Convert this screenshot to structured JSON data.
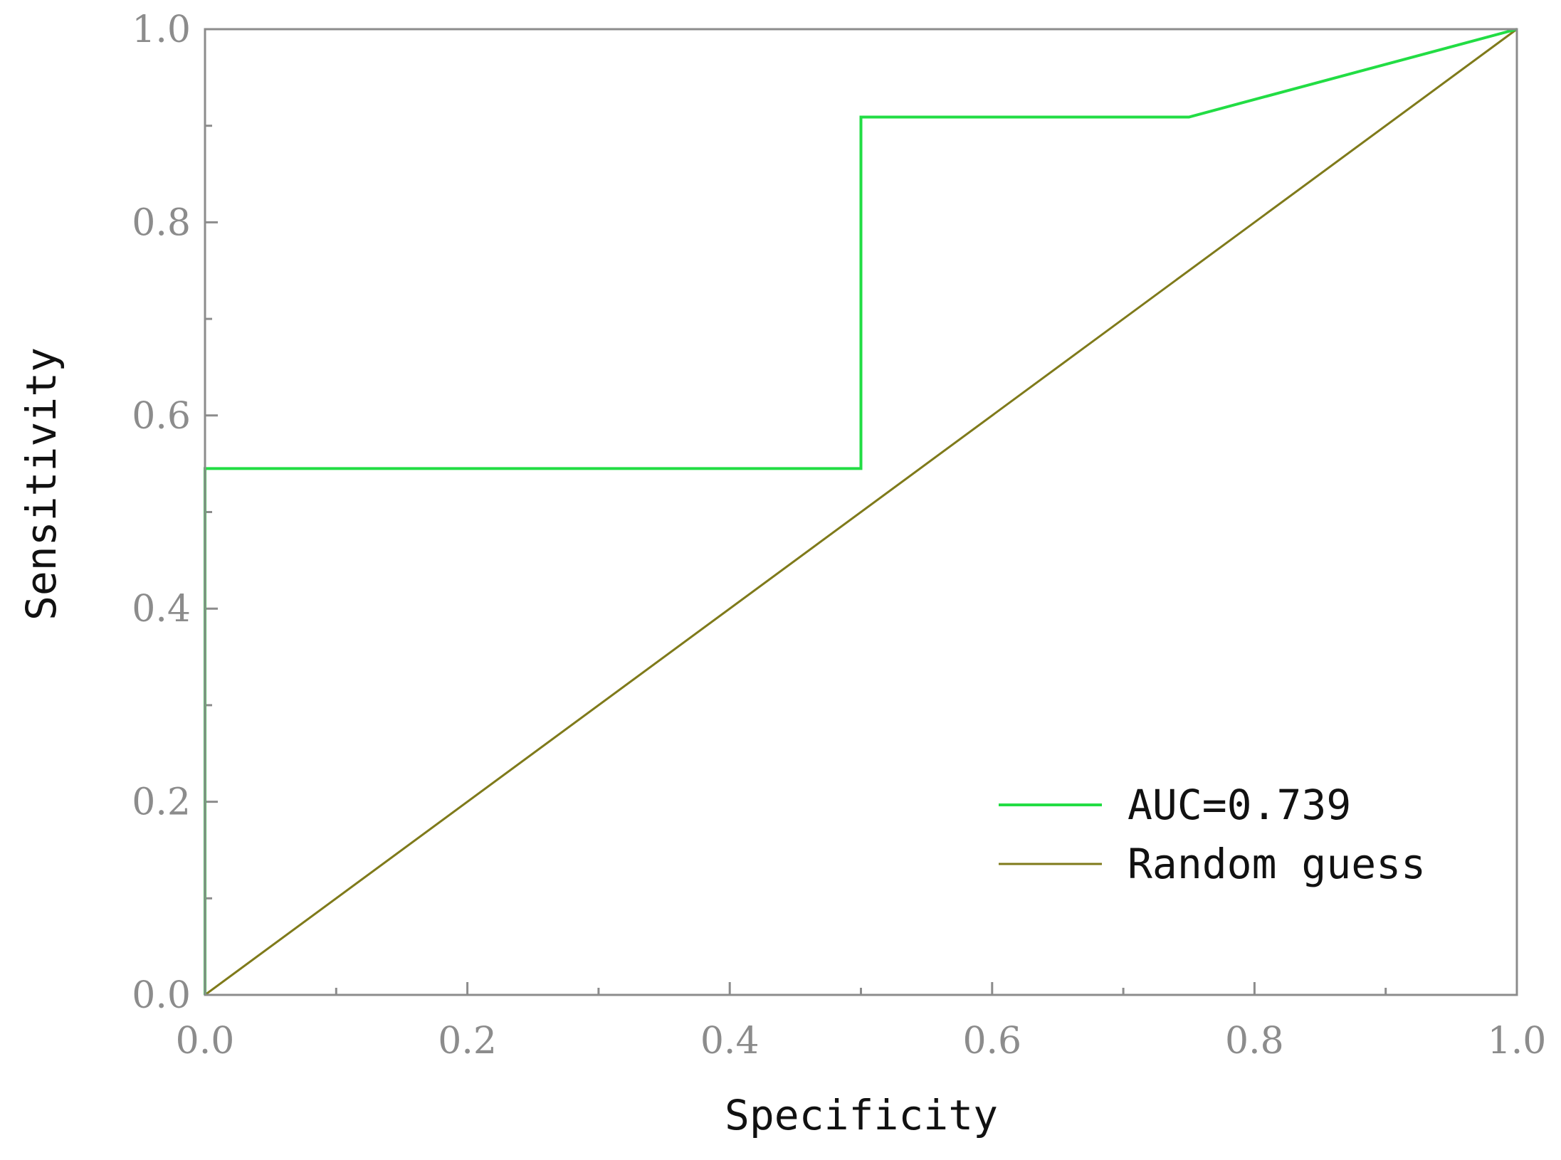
{
  "chart_data": {
    "type": "line",
    "title": "",
    "xlabel": "Specificity",
    "ylabel": "Sensitivity",
    "xlim": [
      0.0,
      1.0
    ],
    "ylim": [
      0.0,
      1.0
    ],
    "x_ticks": [
      "0.0",
      "0.2",
      "0.4",
      "0.6",
      "0.8",
      "1.0"
    ],
    "y_ticks": [
      "0.0",
      "0.2",
      "0.4",
      "0.6",
      "0.8",
      "1.0"
    ],
    "grid": false,
    "legend_position": "bottom-right",
    "series": [
      {
        "name": "AUC=0.739",
        "color": "#22dd44",
        "x": [
          0.0,
          0.0,
          0.5,
          0.5,
          0.75,
          1.0
        ],
        "y": [
          0.0,
          0.545,
          0.545,
          0.909,
          0.909,
          1.0
        ]
      },
      {
        "name": "Random guess",
        "color": "#7f7a1a",
        "x": [
          0.0,
          1.0
        ],
        "y": [
          0.0,
          1.0
        ]
      }
    ]
  }
}
